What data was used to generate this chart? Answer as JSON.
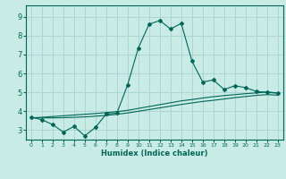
{
  "xlabel": "Humidex (Indice chaleur)",
  "ylabel": "",
  "xlim": [
    -0.5,
    23.5
  ],
  "ylim": [
    2.5,
    9.6
  ],
  "bg_color": "#c8ebe6",
  "grid_color": "#a0cccc",
  "line_color": "#006655",
  "xticks": [
    0,
    1,
    2,
    3,
    4,
    5,
    6,
    7,
    8,
    9,
    10,
    11,
    12,
    13,
    14,
    15,
    16,
    17,
    18,
    19,
    20,
    21,
    22,
    23
  ],
  "yticks": [
    3,
    4,
    5,
    6,
    7,
    8,
    9
  ],
  "line1_x": [
    0,
    1,
    2,
    3,
    4,
    5,
    6,
    7,
    8,
    9,
    10,
    11,
    12,
    13,
    14,
    15,
    16,
    17,
    18,
    19,
    20,
    21,
    22,
    23
  ],
  "line1_y": [
    3.7,
    3.55,
    3.3,
    2.9,
    3.2,
    2.7,
    3.15,
    3.85,
    null,
    null,
    7.35,
    8.6,
    8.8,
    8.35,
    8.65,
    6.65,
    5.55,
    5.65,
    5.15,
    5.35,
    5.25,
    5.05,
    5.0,
    4.95
  ],
  "line1_x_seg1": [
    0,
    1,
    2,
    3,
    4,
    5,
    6,
    7
  ],
  "line1_y_seg1": [
    3.7,
    3.55,
    3.3,
    2.9,
    3.2,
    2.7,
    3.15,
    3.85
  ],
  "line1_x_seg2": [
    7,
    8,
    9,
    10,
    11,
    12,
    13,
    14,
    15,
    16,
    17,
    18,
    19,
    20,
    21,
    22,
    23
  ],
  "line1_y_seg2": [
    3.85,
    3.9,
    5.4,
    7.35,
    8.6,
    8.8,
    8.35,
    8.65,
    6.65,
    5.55,
    5.65,
    5.15,
    5.35,
    5.25,
    5.05,
    5.0,
    4.95
  ],
  "line2_x": [
    0,
    1,
    2,
    3,
    4,
    5,
    6,
    7,
    8,
    9,
    10,
    11,
    12,
    13,
    14,
    15,
    16,
    17,
    18,
    19,
    20,
    21,
    22,
    23
  ],
  "line2_y": [
    3.65,
    3.68,
    3.72,
    3.76,
    3.8,
    3.84,
    3.88,
    3.93,
    3.98,
    4.05,
    4.15,
    4.25,
    4.35,
    4.45,
    4.55,
    4.62,
    4.7,
    4.77,
    4.83,
    4.88,
    4.93,
    4.97,
    5.02,
    4.97
  ],
  "line3_x": [
    0,
    1,
    2,
    3,
    4,
    5,
    6,
    7,
    8,
    9,
    10,
    11,
    12,
    13,
    14,
    15,
    16,
    17,
    18,
    19,
    20,
    21,
    22,
    23
  ],
  "line3_y": [
    3.65,
    3.65,
    3.65,
    3.66,
    3.68,
    3.7,
    3.74,
    3.78,
    3.84,
    3.91,
    4.0,
    4.09,
    4.18,
    4.27,
    4.36,
    4.44,
    4.52,
    4.58,
    4.65,
    4.72,
    4.78,
    4.84,
    4.88,
    4.85
  ]
}
